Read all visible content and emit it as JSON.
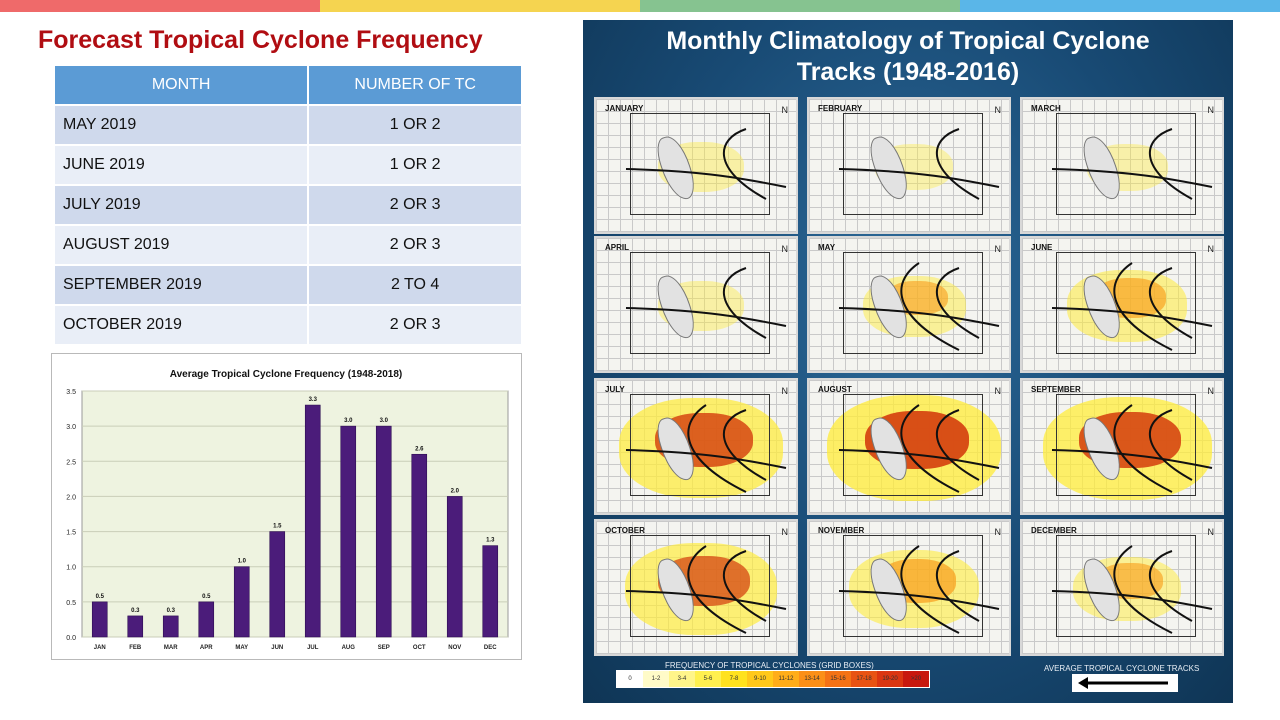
{
  "colors": {
    "topbar": [
      "#ef6a6a",
      "#f5d450",
      "#86c390",
      "#5ab6e8"
    ],
    "title": "#b00d12",
    "bar": "#4b1c7a",
    "plot_bg": "#eef3e0"
  },
  "title": "Forecast Tropical Cyclone Frequency",
  "forecast_table": {
    "headers": [
      "MONTH",
      "NUMBER OF TC"
    ],
    "rows": [
      {
        "month": "MAY 2019",
        "count": "1 OR 2"
      },
      {
        "month": "JUNE 2019",
        "count": "1 OR 2"
      },
      {
        "month": "JULY 2019",
        "count": "2 OR 3"
      },
      {
        "month": "AUGUST 2019",
        "count": "2 OR 3"
      },
      {
        "month": "SEPTEMBER 2019",
        "count": "2 TO 4"
      },
      {
        "month": "OCTOBER 2019",
        "count": "2 OR 3"
      }
    ]
  },
  "chart_data": {
    "type": "bar",
    "title": "Average Tropical Cyclone Frequency (1948-2018)",
    "categories": [
      "JAN",
      "FEB",
      "MAR",
      "APR",
      "MAY",
      "JUN",
      "JUL",
      "AUG",
      "SEP",
      "OCT",
      "NOV",
      "DEC"
    ],
    "values": [
      0.5,
      0.3,
      0.3,
      0.5,
      1.0,
      1.5,
      3.3,
      3.0,
      3.0,
      2.6,
      2.0,
      1.3
    ],
    "data_labels": [
      "0.5",
      "0.3",
      "0.3",
      "0.5",
      "1.0",
      "1.5",
      "3.3",
      "3.0",
      "3.0",
      "2.6",
      "2.0",
      "1.3"
    ],
    "ylim": [
      0,
      3.5
    ],
    "yticks": [
      "0.0",
      "0.5",
      "1.0",
      "1.5",
      "2.0",
      "2.5",
      "3.0",
      "3.5"
    ],
    "grid": true,
    "xlabel": "",
    "ylabel": ""
  },
  "poster": {
    "title_line1": "Monthly Climatology of Tropical Cyclone",
    "title_line2": "Tracks (1948-2016)",
    "panels": [
      {
        "label": "JANUARY",
        "level": 0.15
      },
      {
        "label": "FEBRUARY",
        "level": 0.08
      },
      {
        "label": "MARCH",
        "level": 0.1
      },
      {
        "label": "APRIL",
        "level": 0.15
      },
      {
        "label": "MAY",
        "level": 0.3
      },
      {
        "label": "JUNE",
        "level": 0.45
      },
      {
        "label": "JULY",
        "level": 0.85
      },
      {
        "label": "AUGUST",
        "level": 0.95
      },
      {
        "label": "SEPTEMBER",
        "level": 0.9
      },
      {
        "label": "OCTOBER",
        "level": 0.75
      },
      {
        "label": "NOVEMBER",
        "level": 0.55
      },
      {
        "label": "DECEMBER",
        "level": 0.35
      }
    ],
    "compass_label": "N",
    "legend_title": "FREQUENCY OF TROPICAL CYCLONES (GRID BOXES)",
    "legend_bins": [
      {
        "label": "0",
        "color": "#ffffff"
      },
      {
        "label": "1-2",
        "color": "#fffbc8"
      },
      {
        "label": "3-4",
        "color": "#fff58a"
      },
      {
        "label": "5-6",
        "color": "#fff04f"
      },
      {
        "label": "7-8",
        "color": "#ffe21e"
      },
      {
        "label": "9-10",
        "color": "#ffc81a"
      },
      {
        "label": "11-12",
        "color": "#ffad19"
      },
      {
        "label": "13-14",
        "color": "#fb8f17"
      },
      {
        "label": "15-16",
        "color": "#f47215"
      },
      {
        "label": "17-18",
        "color": "#e85313"
      },
      {
        "label": "19-20",
        "color": "#db3611"
      },
      {
        "label": ">20",
        "color": "#c8180e"
      }
    ],
    "track_legend_label": "AVERAGE TROPICAL CYCLONE TRACKS"
  }
}
